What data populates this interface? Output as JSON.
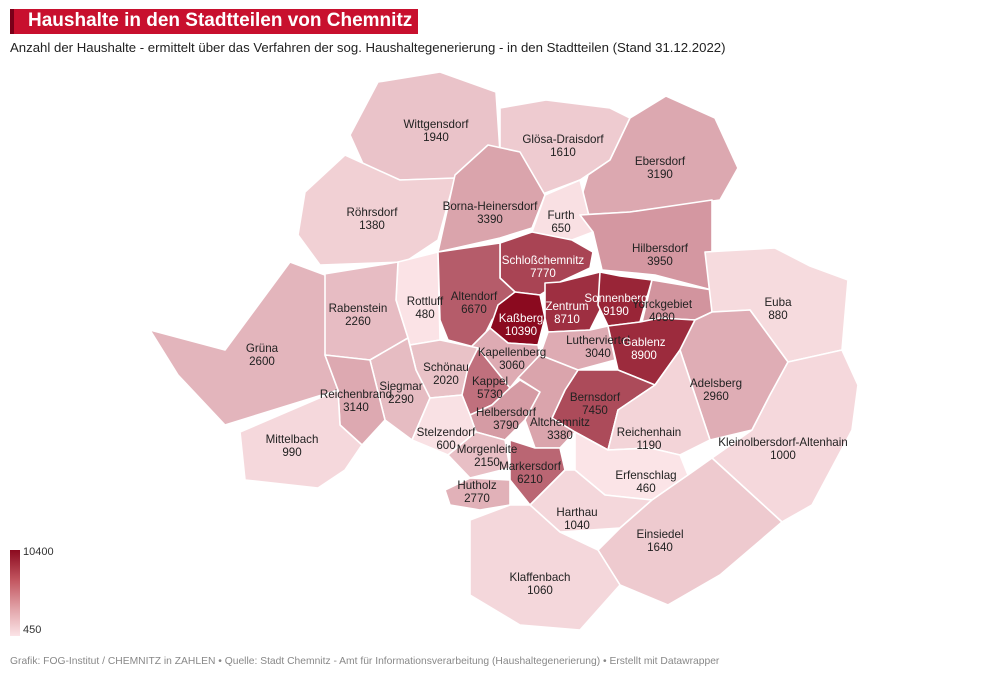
{
  "title": "Haushalte in den Stadtteilen von Chemnitz",
  "subtitle": "Anzahl der Haushalte - ermittelt über das Verfahren der sog. Haushaltegenerierung - in den Stadtteilen (Stand 31.12.2022)",
  "legend": {
    "max_label": "10400",
    "min_label": "450",
    "max": 10400,
    "min": 450
  },
  "footer": "Grafik: FOG-Institut / CHEMNITZ in ZAHLEN • Quelle: Stadt Chemnitz - Amt für Informationsverarbeitung (Haushaltegenerierung) • Erstellt mit Datawrapper",
  "colors": {
    "low": "#fbe4e7",
    "high": "#8b0a1f",
    "title_bg": "#c8102e"
  },
  "districts": [
    {
      "name": "Wittgensdorf",
      "value": 1940
    },
    {
      "name": "Glösa-Draisdorf",
      "value": 1610
    },
    {
      "name": "Ebersdorf",
      "value": 3190
    },
    {
      "name": "Röhrsdorf",
      "value": 1380
    },
    {
      "name": "Borna-Heinersdorf",
      "value": 3390
    },
    {
      "name": "Furth",
      "value": 650
    },
    {
      "name": "Hilbersdorf",
      "value": 3950
    },
    {
      "name": "Schloßchemnitz",
      "value": 7770
    },
    {
      "name": "Rottluff",
      "value": 480
    },
    {
      "name": "Altendorf",
      "value": 6670
    },
    {
      "name": "Rabenstein",
      "value": 2260
    },
    {
      "name": "Kaßberg",
      "value": 10390
    },
    {
      "name": "Zentrum",
      "value": 8710
    },
    {
      "name": "Sonnenberg",
      "value": 9190
    },
    {
      "name": "Yorckgebiet",
      "value": 4080
    },
    {
      "name": "Euba",
      "value": 880
    },
    {
      "name": "Grüna",
      "value": 2600
    },
    {
      "name": "Lutherviertel",
      "value": 3040
    },
    {
      "name": "Gablenz",
      "value": 8900
    },
    {
      "name": "Kapellenberg",
      "value": 3060
    },
    {
      "name": "Schönau",
      "value": 2020
    },
    {
      "name": "Kappel",
      "value": 5730
    },
    {
      "name": "Adelsberg",
      "value": 2960
    },
    {
      "name": "Siegmar",
      "value": 2290
    },
    {
      "name": "Reichenbrand",
      "value": 3140
    },
    {
      "name": "Bernsdorf",
      "value": 7450
    },
    {
      "name": "Helbersdorf",
      "value": 3790
    },
    {
      "name": "Altchemnitz",
      "value": 3380
    },
    {
      "name": "Stelzendorf",
      "value": 600
    },
    {
      "name": "Reichenhain",
      "value": 1190
    },
    {
      "name": "Mittelbach",
      "value": 990
    },
    {
      "name": "Kleinolbersdorf-Altenhain",
      "value": 1000
    },
    {
      "name": "Morgenleite",
      "value": 2150
    },
    {
      "name": "Markersdorf",
      "value": 6210
    },
    {
      "name": "Erfenschlag",
      "value": 460
    },
    {
      "name": "Hutholz",
      "value": 2770
    },
    {
      "name": "Harthau",
      "value": 1040
    },
    {
      "name": "Einsiedel",
      "value": 1640
    },
    {
      "name": "Klaffenbach",
      "value": 1060
    }
  ]
}
